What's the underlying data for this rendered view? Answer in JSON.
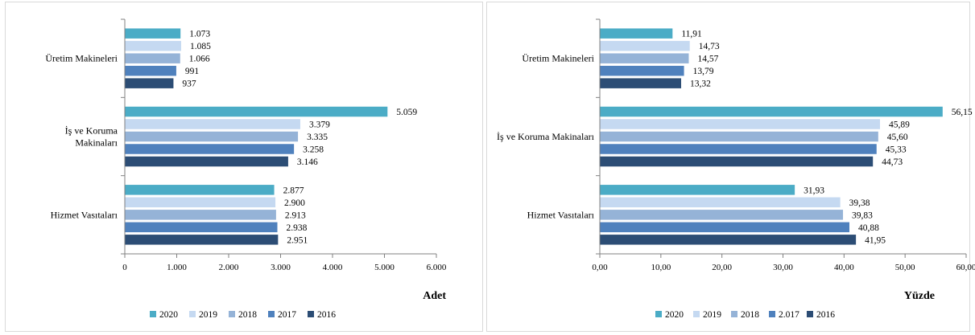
{
  "colors": {
    "2020": "#4bacc6",
    "2019": "#c5d9f1",
    "2018": "#95b3d7",
    "2017": "#4f81bd",
    "2016": "#2c4d75",
    "axis": "#808080"
  },
  "chart_data": [
    {
      "type": "bar",
      "orientation": "horizontal",
      "categories": [
        "Üretim Makineleri",
        "İş ve Koruma Makinaları",
        "Hizmet Vasıtaları"
      ],
      "category_lines": [
        [
          "Üretim Makineleri"
        ],
        [
          "İş ve Koruma",
          "Makinaları"
        ],
        [
          "Hizmet Vasıtaları"
        ]
      ],
      "series": [
        {
          "name": "2020",
          "color_key": "2020",
          "values": [
            1073,
            5059,
            2877
          ],
          "labels": [
            "1.073",
            "5.059",
            "2.877"
          ]
        },
        {
          "name": "2019",
          "color_key": "2019",
          "values": [
            1085,
            3379,
            2900
          ],
          "labels": [
            "1.085",
            "3.379",
            "2.900"
          ]
        },
        {
          "name": "2018",
          "color_key": "2018",
          "values": [
            1066,
            3335,
            2913
          ],
          "labels": [
            "1.066",
            "3.335",
            "2.913"
          ]
        },
        {
          "name": "2017",
          "color_key": "2017",
          "values": [
            991,
            3258,
            2938
          ],
          "labels": [
            "991",
            "3.258",
            "2.938"
          ]
        },
        {
          "name": "2016",
          "color_key": "2016",
          "values": [
            937,
            3146,
            2951
          ],
          "labels": [
            "937",
            "3.146",
            "2.951"
          ]
        }
      ],
      "xlim": [
        0,
        6000
      ],
      "xticks": [
        0,
        1000,
        2000,
        3000,
        4000,
        5000,
        6000
      ],
      "xtick_labels": [
        "0",
        "1.000",
        "2.000",
        "3.000",
        "4.000",
        "5.000",
        "6.000"
      ],
      "xlabel": "Adet",
      "legend_position": "bottom",
      "grid": false
    },
    {
      "type": "bar",
      "orientation": "horizontal",
      "categories": [
        "Üretim Makineleri",
        "İş ve Koruma Makinaları",
        "Hizmet Vasıtaları"
      ],
      "category_lines": [
        [
          "Üretim Makineleri"
        ],
        [
          "İş ve Koruma Makinaları"
        ],
        [
          "Hizmet Vasıtaları"
        ]
      ],
      "series": [
        {
          "name": "2020",
          "color_key": "2020",
          "values": [
            11.91,
            56.15,
            31.93
          ],
          "labels": [
            "11,91",
            "56,15",
            "31,93"
          ]
        },
        {
          "name": "2019",
          "color_key": "2019",
          "values": [
            14.73,
            45.89,
            39.38
          ],
          "labels": [
            "14,73",
            "45,89",
            "39,38"
          ]
        },
        {
          "name": "2018",
          "color_key": "2018",
          "values": [
            14.57,
            45.6,
            39.83
          ],
          "labels": [
            "14,57",
            "45,60",
            "39,83"
          ]
        },
        {
          "name": "2.017",
          "color_key": "2017",
          "values": [
            13.79,
            45.33,
            40.88
          ],
          "labels": [
            "13,79",
            "45,33",
            "40,88"
          ]
        },
        {
          "name": "2016",
          "color_key": "2016",
          "values": [
            13.32,
            44.73,
            41.95
          ],
          "labels": [
            "13,32",
            "44,73",
            "41,95"
          ]
        }
      ],
      "xlim": [
        0,
        60
      ],
      "xticks": [
        0,
        10,
        20,
        30,
        40,
        50,
        60
      ],
      "xtick_labels": [
        "0,00",
        "10,00",
        "20,00",
        "30,00",
        "40,00",
        "50,00",
        "60,00"
      ],
      "xlabel": "Yüzde",
      "legend_position": "bottom",
      "grid": false
    }
  ]
}
